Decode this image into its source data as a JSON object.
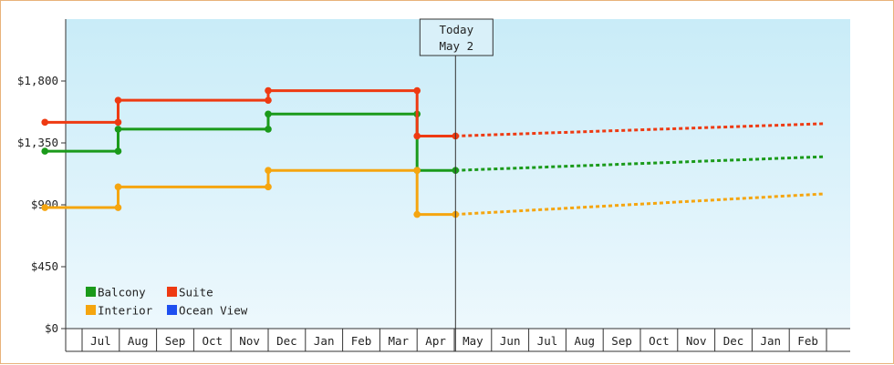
{
  "chart_data": {
    "type": "line",
    "step": true,
    "ylim": [
      0,
      2250
    ],
    "yticks": [
      0,
      450,
      900,
      1350,
      1800
    ],
    "ytick_labels": [
      "$0",
      "$450",
      "$900",
      "$1,350",
      "$1,800"
    ],
    "x_range": [
      "2023-06-01",
      "2024-02-29"
    ],
    "month_labels": [
      "Jul",
      "Aug",
      "Sep",
      "Oct",
      "Nov",
      "Dec",
      "Jan",
      "Feb",
      "Mar",
      "Apr",
      "May",
      "Jun",
      "Jul",
      "Aug",
      "Sep",
      "Oct",
      "Nov",
      "Dec",
      "Jan",
      "Feb"
    ],
    "today": {
      "line1": "Today",
      "line2": "May 2",
      "date": "2023-05-02"
    },
    "legend_position": "bottom-left",
    "grid": false,
    "series": [
      {
        "name": "Balcony",
        "color": "#1a9a1a",
        "points": [
          {
            "x": "2022-06-01",
            "y": 1290
          },
          {
            "x": "2022-07-31",
            "y": 1290
          },
          {
            "x": "2022-07-31",
            "y": 1450
          },
          {
            "x": "2022-12-01",
            "y": 1450
          },
          {
            "x": "2022-12-01",
            "y": 1560
          },
          {
            "x": "2023-04-01",
            "y": 1560
          },
          {
            "x": "2023-04-01",
            "y": 1150
          },
          {
            "x": "2023-05-02",
            "y": 1150
          }
        ],
        "forecast": [
          {
            "x": "2023-05-02",
            "y": 1150
          },
          {
            "x": "2024-02-29",
            "y": 1250
          }
        ]
      },
      {
        "name": "Suite",
        "color": "#ee3a12",
        "points": [
          {
            "x": "2022-06-01",
            "y": 1500
          },
          {
            "x": "2022-07-31",
            "y": 1500
          },
          {
            "x": "2022-07-31",
            "y": 1660
          },
          {
            "x": "2022-12-01",
            "y": 1660
          },
          {
            "x": "2022-12-01",
            "y": 1730
          },
          {
            "x": "2023-04-01",
            "y": 1730
          },
          {
            "x": "2023-04-01",
            "y": 1400
          },
          {
            "x": "2023-05-02",
            "y": 1400
          }
        ],
        "forecast": [
          {
            "x": "2023-05-02",
            "y": 1400
          },
          {
            "x": "2024-02-29",
            "y": 1490
          }
        ]
      },
      {
        "name": "Interior",
        "color": "#f5a50f",
        "points": [
          {
            "x": "2022-06-01",
            "y": 880
          },
          {
            "x": "2022-07-31",
            "y": 880
          },
          {
            "x": "2022-07-31",
            "y": 1030
          },
          {
            "x": "2022-12-01",
            "y": 1030
          },
          {
            "x": "2022-12-01",
            "y": 1150
          },
          {
            "x": "2023-04-01",
            "y": 1150
          },
          {
            "x": "2023-04-01",
            "y": 830
          },
          {
            "x": "2023-05-02",
            "y": 830
          }
        ],
        "forecast": [
          {
            "x": "2023-05-02",
            "y": 830
          },
          {
            "x": "2024-02-29",
            "y": 980
          }
        ]
      },
      {
        "name": "Ocean View",
        "color": "#1e4ff0",
        "points": [],
        "forecast": []
      }
    ]
  }
}
